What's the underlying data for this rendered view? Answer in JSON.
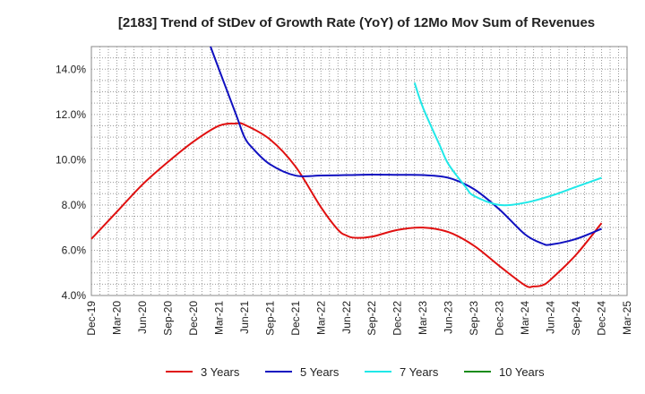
{
  "chart_data": {
    "type": "line",
    "title": "[2183]  Trend of StDev of Growth Rate (YoY) of 12Mo Mov Sum of Revenues",
    "xlabel": "",
    "ylabel": "",
    "x_ticks": [
      "Dec-19",
      "Mar-20",
      "Jun-20",
      "Sep-20",
      "Dec-20",
      "Mar-21",
      "Jun-21",
      "Sep-21",
      "Dec-21",
      "Mar-22",
      "Jun-22",
      "Sep-22",
      "Dec-22",
      "Mar-23",
      "Jun-23",
      "Sep-23",
      "Dec-23",
      "Mar-24",
      "Jun-24",
      "Sep-24",
      "Dec-24",
      "Mar-25"
    ],
    "y_ticks": [
      "4.0%",
      "6.0%",
      "8.0%",
      "10.0%",
      "12.0%",
      "14.0%"
    ],
    "y_tick_values": [
      4,
      6,
      8,
      10,
      12,
      14
    ],
    "ylim": [
      4,
      15
    ],
    "xlim": [
      0,
      21
    ],
    "grid": true,
    "legend_position": "bottom",
    "series": [
      {
        "name": "3 Years",
        "color": "#e01010",
        "points": [
          [
            0,
            6.5
          ],
          [
            1,
            7.7
          ],
          [
            2,
            8.9
          ],
          [
            3,
            9.9
          ],
          [
            4,
            10.8
          ],
          [
            5,
            11.5
          ],
          [
            5.67,
            11.6
          ],
          [
            6,
            11.55
          ],
          [
            7,
            10.9
          ],
          [
            8,
            9.7
          ],
          [
            9,
            7.9
          ],
          [
            9.67,
            6.9
          ],
          [
            10,
            6.65
          ],
          [
            10.33,
            6.55
          ],
          [
            11,
            6.6
          ],
          [
            12,
            6.9
          ],
          [
            13,
            7.0
          ],
          [
            14,
            6.8
          ],
          [
            15,
            6.2
          ],
          [
            16,
            5.3
          ],
          [
            17,
            4.45
          ],
          [
            17.33,
            4.4
          ],
          [
            17.67,
            4.45
          ],
          [
            18,
            4.7
          ],
          [
            19,
            5.8
          ],
          [
            20,
            7.2
          ]
        ]
      },
      {
        "name": "5 Years",
        "color": "#1010c0",
        "points": [
          [
            4.67,
            15.0
          ],
          [
            5,
            14.0
          ],
          [
            5.67,
            12.0
          ],
          [
            6,
            11.0
          ],
          [
            6.33,
            10.5
          ],
          [
            7,
            9.8
          ],
          [
            8,
            9.3
          ],
          [
            9,
            9.3
          ],
          [
            10,
            9.32
          ],
          [
            11,
            9.34
          ],
          [
            12,
            9.33
          ],
          [
            13,
            9.32
          ],
          [
            14,
            9.2
          ],
          [
            15,
            8.7
          ],
          [
            16,
            7.8
          ],
          [
            17,
            6.7
          ],
          [
            17.67,
            6.3
          ],
          [
            18,
            6.25
          ],
          [
            19,
            6.5
          ],
          [
            20,
            6.95
          ]
        ]
      },
      {
        "name": "7 Years",
        "color": "#20e8e8",
        "points": [
          [
            12.67,
            13.4
          ],
          [
            13,
            12.3
          ],
          [
            13.67,
            10.6
          ],
          [
            14,
            9.8
          ],
          [
            14.67,
            8.8
          ],
          [
            15,
            8.4
          ],
          [
            16,
            8.0
          ],
          [
            17,
            8.1
          ],
          [
            18,
            8.4
          ],
          [
            19,
            8.8
          ],
          [
            20,
            9.2
          ]
        ]
      },
      {
        "name": "10 Years",
        "color": "#1a8c1a",
        "points": []
      }
    ]
  }
}
